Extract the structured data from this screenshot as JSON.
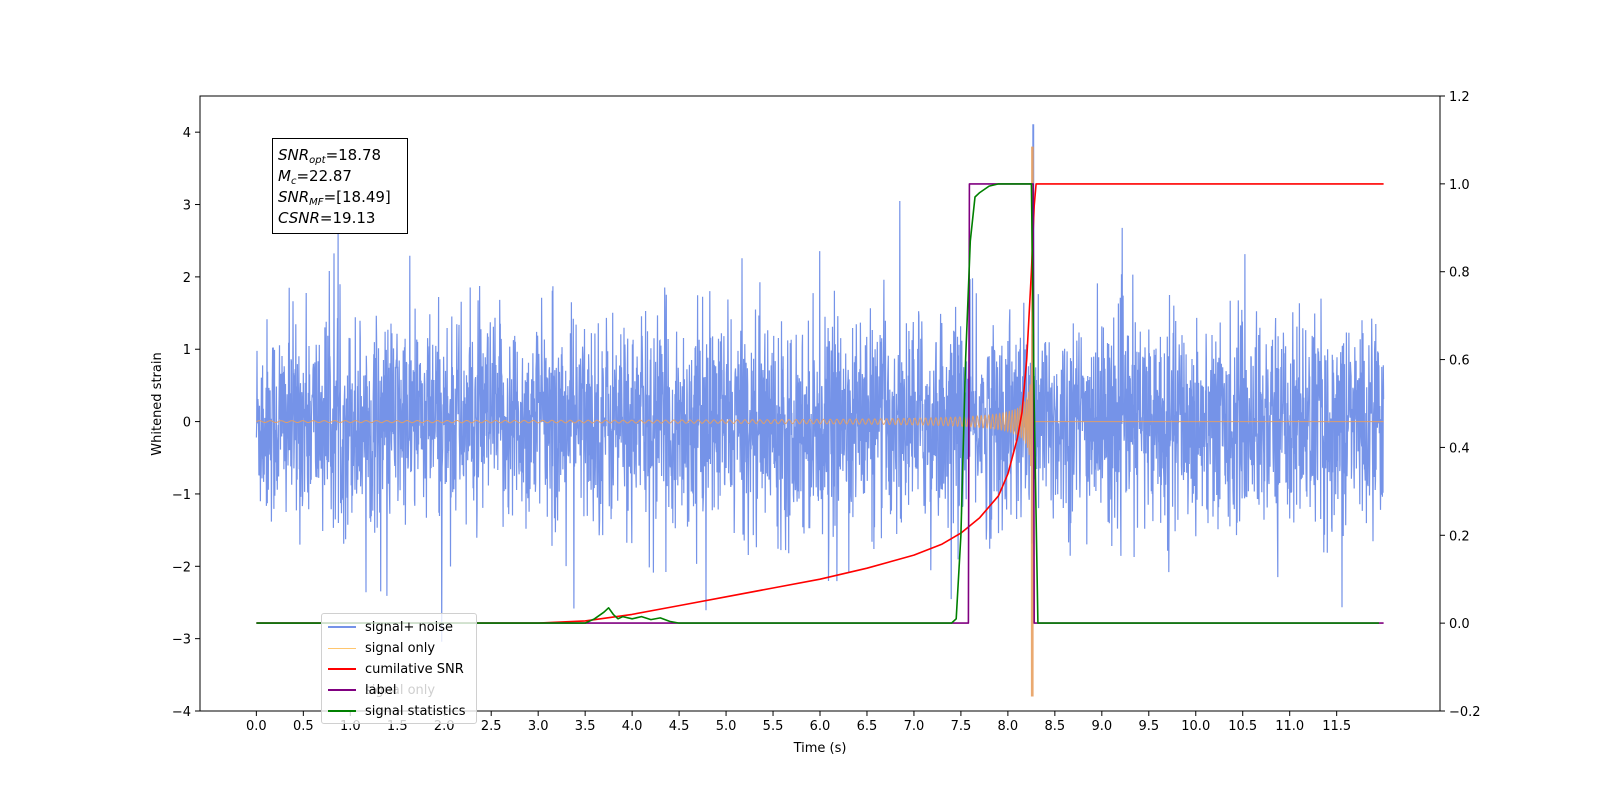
{
  "chart_data": {
    "type": "line",
    "xlabel": "Time (s)",
    "ylabel": "Whitened strain",
    "xlim": [
      -0.6,
      12.6
    ],
    "ylim": [
      -4,
      4.5
    ],
    "y2lim": [
      -0.2,
      1.2
    ],
    "x_ticks": [
      "0.0",
      "0.5",
      "1.0",
      "1.5",
      "2.0",
      "2.5",
      "3.0",
      "3.5",
      "4.0",
      "4.5",
      "5.0",
      "5.5",
      "6.0",
      "6.5",
      "7.0",
      "7.5",
      "8.0",
      "8.5",
      "9.0",
      "9.5",
      "10.0",
      "10.5",
      "11.0",
      "11.5"
    ],
    "y_ticks": [
      "−4",
      "−3",
      "−2",
      "−1",
      "0",
      "1",
      "2",
      "3",
      "4"
    ],
    "y2_ticks": [
      "−0.2",
      "0.0",
      "0.2",
      "0.4",
      "0.6",
      "0.8",
      "1.0",
      "1.2"
    ],
    "legend_position": "lower-left",
    "annotations": {
      "snr_opt": {
        "name": "SNR",
        "sub": "opt",
        "value": "=18.78"
      },
      "mc": {
        "name": "M",
        "sub": "c",
        "value": "=22.87"
      },
      "snr_mf": {
        "name": "SNR",
        "sub": "MF",
        "value": "=[18.49]"
      },
      "csnr": {
        "name": "CSNR",
        "sub": "",
        "value": "=19.13"
      }
    },
    "series": [
      {
        "name": "signal+ noise",
        "color": "#7593e8",
        "axis": "left",
        "noise_std": 0.7,
        "x_range": [
          0.0,
          12.0
        ],
        "peak": {
          "x": 8.27,
          "y": 4.1
        }
      },
      {
        "name": "signal only",
        "color": "#e8a060",
        "axis": "left",
        "chirp_end_x": 8.27,
        "peak_amplitude": 3.8
      },
      {
        "name": "cumilative SNR",
        "color": "#ff0000",
        "axis": "right",
        "x": [
          0.0,
          3.0,
          3.5,
          4.0,
          4.5,
          5.0,
          5.5,
          6.0,
          6.5,
          7.0,
          7.3,
          7.5,
          7.7,
          7.9,
          8.0,
          8.1,
          8.15,
          8.2,
          8.25,
          8.28,
          8.3,
          12.0
        ],
        "y": [
          0.0,
          0.0,
          0.005,
          0.02,
          0.04,
          0.06,
          0.08,
          0.1,
          0.125,
          0.155,
          0.18,
          0.205,
          0.24,
          0.29,
          0.34,
          0.42,
          0.48,
          0.6,
          0.8,
          0.95,
          1.0,
          1.0
        ]
      },
      {
        "name": "label",
        "color": "#800080",
        "axis": "right",
        "x": [
          0.0,
          7.58,
          7.59,
          8.27,
          8.28,
          12.0
        ],
        "y": [
          0.0,
          0.0,
          1.0,
          1.0,
          0.0,
          0.0
        ]
      },
      {
        "name": "signal statistics",
        "color": "#008000",
        "axis": "right",
        "x": [
          0.0,
          3.5,
          3.6,
          3.7,
          3.75,
          3.8,
          3.85,
          3.9,
          4.0,
          4.1,
          4.2,
          4.3,
          4.4,
          4.5,
          7.3,
          7.4,
          7.45,
          7.5,
          7.55,
          7.6,
          7.65,
          7.7,
          7.8,
          7.9,
          8.0,
          8.1,
          8.25,
          8.28,
          8.32,
          11.95
        ],
        "y": [
          0.0,
          0.0,
          0.01,
          0.025,
          0.035,
          0.02,
          0.01,
          0.015,
          0.01,
          0.015,
          0.008,
          0.012,
          0.004,
          0.0,
          0.0,
          0.0,
          0.01,
          0.2,
          0.6,
          0.87,
          0.97,
          0.98,
          0.995,
          1.0,
          1.0,
          1.0,
          1.0,
          0.5,
          0.0,
          0.0
        ]
      }
    ],
    "legend_entries": [
      "signal+ noise",
      "signal only",
      "cumilative SNR",
      "label",
      "signal statistics"
    ],
    "legend_ghost_text": "signal only"
  }
}
